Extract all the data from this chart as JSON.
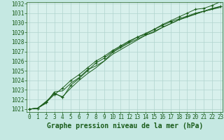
{
  "title": "Graphe pression niveau de la mer (hPa)",
  "background_color": "#c5e8e2",
  "plot_bg_color": "#d8f0ec",
  "grid_color": "#b0d4ce",
  "line_color": "#1a5c1a",
  "marker_color": "#1a5c1a",
  "ylim": [
    1021,
    1032
  ],
  "xlim": [
    0,
    23
  ],
  "yticks": [
    1021,
    1022,
    1023,
    1024,
    1025,
    1026,
    1027,
    1028,
    1029,
    1030,
    1031,
    1032
  ],
  "xticks": [
    0,
    1,
    2,
    3,
    4,
    5,
    6,
    7,
    8,
    9,
    10,
    11,
    12,
    13,
    14,
    15,
    16,
    17,
    18,
    19,
    20,
    21,
    22,
    23
  ],
  "series": [
    {
      "y": [
        1021.0,
        1021.1,
        1021.7,
        1022.7,
        1022.2,
        1023.5,
        1024.2,
        1025.0,
        1025.8,
        1026.3,
        1027.0,
        1027.5,
        1028.0,
        1028.5,
        1028.8,
        1029.3,
        1029.8,
        1030.2,
        1030.6,
        1031.0,
        1031.4,
        1031.5,
        1031.8,
        1032.2
      ],
      "marker": true
    },
    {
      "y": [
        1021.0,
        1021.1,
        1021.6,
        1022.8,
        1022.9,
        1023.7,
        1024.3,
        1025.1,
        1025.5,
        1026.0,
        1026.9,
        1027.4,
        1027.9,
        1028.3,
        1028.7,
        1029.0,
        1029.5,
        1029.9,
        1030.3,
        1030.6,
        1030.9,
        1031.2,
        1031.4,
        1031.7
      ],
      "marker": false
    },
    {
      "y": [
        1021.0,
        1021.1,
        1021.7,
        1022.5,
        1023.2,
        1024.0,
        1024.6,
        1025.3,
        1026.0,
        1026.5,
        1027.1,
        1027.6,
        1028.1,
        1028.5,
        1028.9,
        1029.3,
        1029.7,
        1030.1,
        1030.4,
        1030.7,
        1031.0,
        1031.2,
        1031.5,
        1031.7
      ],
      "marker": true
    },
    {
      "y": [
        1021.0,
        1021.1,
        1021.8,
        1022.6,
        1022.3,
        1023.2,
        1024.0,
        1024.7,
        1025.3,
        1026.0,
        1026.7,
        1027.2,
        1027.7,
        1028.2,
        1028.7,
        1029.1,
        1029.5,
        1029.9,
        1030.3,
        1030.6,
        1030.9,
        1031.2,
        1031.4,
        1031.6
      ],
      "marker": false
    }
  ],
  "title_fontsize": 7,
  "tick_fontsize": 5.5
}
